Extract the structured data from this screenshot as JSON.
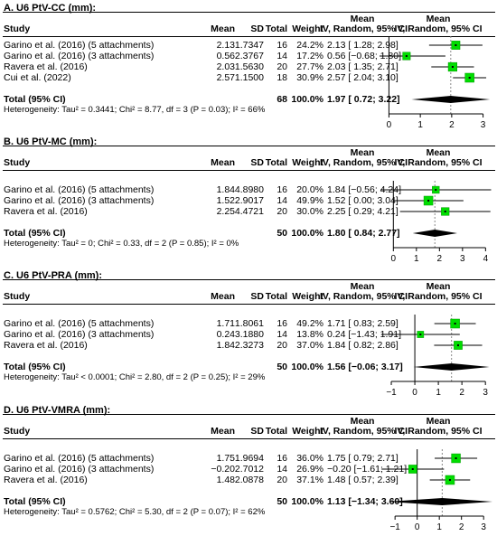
{
  "headers": {
    "study": "Study",
    "mean": "Mean",
    "sd": "SD",
    "total": "Total",
    "weight": "Weight",
    "ci_top": "Mean",
    "ci_bottom": "IV, Random, 95% CI"
  },
  "panels": [
    {
      "title": "A. U6 PtV-CC (mm):",
      "studies": [
        {
          "study": "Garino et al. (2016) (5 attachments)",
          "mean": "2.13",
          "sd": "1.7347",
          "total": "16",
          "weight": "24.2%",
          "ci": "2.13 [ 1.28; 2.98]",
          "est": 2.13,
          "lo": 1.28,
          "hi": 2.98,
          "w": 24.2
        },
        {
          "study": "Garino et al. (2016) (3 attachments)",
          "mean": "0.56",
          "sd": "2.3767",
          "total": "14",
          "weight": "17.2%",
          "ci": "0.56 [−0.68; 1.80]",
          "est": 0.56,
          "lo": -0.68,
          "hi": 1.8,
          "w": 17.2
        },
        {
          "study": "Ravera et al. (2016)",
          "mean": "2.03",
          "sd": "1.5630",
          "total": "20",
          "weight": "27.7%",
          "ci": "2.03 [ 1.35; 2.71]",
          "est": 2.03,
          "lo": 1.35,
          "hi": 2.71,
          "w": 27.7
        },
        {
          "study": "Cui et al. (2022)",
          "mean": "2.57",
          "sd": "1.1500",
          "total": "18",
          "weight": "30.9%",
          "ci": "2.57 [ 2.04; 3.10]",
          "est": 2.57,
          "lo": 2.04,
          "hi": 3.1,
          "w": 30.9
        }
      ],
      "total": {
        "label": "Total (95% CI)",
        "n": "68",
        "weight": "100.0%",
        "ci": "1.97 [ 0.72; 3.22]",
        "est": 1.97,
        "lo": 0.72,
        "hi": 3.22
      },
      "heterogeneity": "Heterogeneity: Tau² = 0.3441; Chi² = 8.77, df = 3 (P = 0.03); I² = 66%",
      "axis": {
        "min": 0,
        "max": 3,
        "ticks": [
          "0",
          "1",
          "2",
          "3"
        ],
        "xmin": -0.3,
        "xmax": 3.3
      }
    },
    {
      "title": "B. U6 PtV-MC (mm):",
      "studies": [
        {
          "study": "Garino et al. (2016) (5 attachments)",
          "mean": "1.84",
          "sd": "4.8980",
          "total": "16",
          "weight": "20.0%",
          "ci": "1.84 [−0.56; 4.24]",
          "est": 1.84,
          "lo": -0.56,
          "hi": 4.24,
          "w": 20.0
        },
        {
          "study": "Garino et al. (2016) (3 attachments)",
          "mean": "1.52",
          "sd": "2.9017",
          "total": "14",
          "weight": "49.9%",
          "ci": "1.52 [ 0.00; 3.04]",
          "est": 1.52,
          "lo": 0.0,
          "hi": 3.04,
          "w": 49.9
        },
        {
          "study": "Ravera et al. (2016)",
          "mean": "2.25",
          "sd": "4.4721",
          "total": "20",
          "weight": "30.0%",
          "ci": "2.25 [ 0.29; 4.21]",
          "est": 2.25,
          "lo": 0.29,
          "hi": 4.21,
          "w": 30.0
        }
      ],
      "total": {
        "label": "Total (95% CI)",
        "n": "50",
        "weight": "100.0%",
        "ci": "1.80 [ 0.84; 2.77]",
        "est": 1.8,
        "lo": 0.84,
        "hi": 2.77
      },
      "heterogeneity": "Heterogeneity: Tau² = 0; Chi² = 0.33, df = 2 (P = 0.85); I² = 0%",
      "axis": {
        "min": 0,
        "max": 4,
        "ticks": [
          "0",
          "1",
          "2",
          "3",
          "4"
        ],
        "xmin": -0.6,
        "xmax": 4.3
      }
    },
    {
      "title": "C. U6 PtV-PRA (mm):",
      "studies": [
        {
          "study": "Garino et al. (2016) (5 attachments)",
          "mean": "1.71",
          "sd": "1.8061",
          "total": "16",
          "weight": "49.2%",
          "ci": "1.71 [ 0.83; 2.59]",
          "est": 1.71,
          "lo": 0.83,
          "hi": 2.59,
          "w": 49.2
        },
        {
          "study": "Garino et al. (2016) (3 attachments)",
          "mean": "0.24",
          "sd": "3.1880",
          "total": "14",
          "weight": "13.8%",
          "ci": "0.24 [−1.43; 1.91]",
          "est": 0.24,
          "lo": -1.43,
          "hi": 1.91,
          "w": 13.8
        },
        {
          "study": "Ravera et al. (2016)",
          "mean": "1.84",
          "sd": "2.3273",
          "total": "20",
          "weight": "37.0%",
          "ci": "1.84 [ 0.82; 2.86]",
          "est": 1.84,
          "lo": 0.82,
          "hi": 2.86,
          "w": 37.0
        }
      ],
      "total": {
        "label": "Total (95% CI)",
        "n": "50",
        "weight": "100.0%",
        "ci": "1.56 [−0.06; 3.17]",
        "est": 1.56,
        "lo": -0.06,
        "hi": 3.17
      },
      "heterogeneity": "Heterogeneity: Tau² < 0.0001; Chi² = 2.80, df = 2 (P = 0.25); I² = 29%",
      "axis": {
        "min": -1,
        "max": 3,
        "ticks": [
          "−1",
          "0",
          "1",
          "2",
          "3"
        ],
        "xmin": -1.5,
        "xmax": 3.3
      }
    },
    {
      "title": "D. U6 PtV-VMRA (mm):",
      "studies": [
        {
          "study": "Garino et al. (2016) (5 attachments)",
          "mean": "1.75",
          "sd": "1.9694",
          "total": "16",
          "weight": "36.0%",
          "ci": "1.75 [ 0.79; 2.71]",
          "est": 1.75,
          "lo": 0.79,
          "hi": 2.71,
          "w": 36.0
        },
        {
          "study": "Garino et al. (2016) (3 attachments)",
          "mean": "−0.20",
          "sd": "2.7012",
          "total": "14",
          "weight": "26.9%",
          "ci": "−0.20 [−1.61; 1.21]",
          "est": -0.2,
          "lo": -1.61,
          "hi": 1.21,
          "w": 26.9
        },
        {
          "study": "Ravera et al. (2016)",
          "mean": "1.48",
          "sd": "2.0878",
          "total": "20",
          "weight": "37.1%",
          "ci": "1.48 [ 0.57; 2.39]",
          "est": 1.48,
          "lo": 0.57,
          "hi": 2.39,
          "w": 37.1
        }
      ],
      "total": {
        "label": "Total (95% CI)",
        "n": "50",
        "weight": "100.0%",
        "ci": "1.13 [−1.34; 3.60]",
        "est": 1.13,
        "lo": -1.34,
        "hi": 3.6
      },
      "heterogeneity": "Heterogeneity: Tau² = 0.5762; Chi² = 5.30, df = 2 (P = 0.07); I² = 62%",
      "axis": {
        "min": -1,
        "max": 3,
        "ticks": [
          "−1",
          "0",
          "1",
          "2",
          "3"
        ],
        "xmin": -1.7,
        "xmax": 3.4
      }
    }
  ],
  "chart_data": [
    {
      "type": "forest",
      "title": "A. U6 PtV-CC (mm):",
      "categories": [
        "Garino et al. (2016) (5 attachments)",
        "Garino et al. (2016) (3 attachments)",
        "Ravera et al. (2016)",
        "Cui et al. (2022)"
      ],
      "values": [
        2.13,
        0.56,
        2.03,
        2.57
      ],
      "lower": [
        1.28,
        -0.68,
        1.35,
        2.04
      ],
      "upper": [
        2.98,
        1.8,
        2.71,
        3.1
      ],
      "weights": [
        24.2,
        17.2,
        27.7,
        30.9
      ],
      "pooled": {
        "value": 1.97,
        "lower": 0.72,
        "upper": 3.22
      },
      "xlim": [
        0,
        3
      ]
    },
    {
      "type": "forest",
      "title": "B. U6 PtV-MC (mm):",
      "categories": [
        "Garino et al. (2016) (5 attachments)",
        "Garino et al. (2016) (3 attachments)",
        "Ravera et al. (2016)"
      ],
      "values": [
        1.84,
        1.52,
        2.25
      ],
      "lower": [
        -0.56,
        0.0,
        0.29
      ],
      "upper": [
        4.24,
        3.04,
        4.21
      ],
      "weights": [
        20.0,
        49.9,
        30.0
      ],
      "pooled": {
        "value": 1.8,
        "lower": 0.84,
        "upper": 2.77
      },
      "xlim": [
        0,
        4
      ]
    },
    {
      "type": "forest",
      "title": "C. U6 PtV-PRA (mm):",
      "categories": [
        "Garino et al. (2016) (5 attachments)",
        "Garino et al. (2016) (3 attachments)",
        "Ravera et al. (2016)"
      ],
      "values": [
        1.71,
        0.24,
        1.84
      ],
      "lower": [
        0.83,
        -1.43,
        0.82
      ],
      "upper": [
        2.59,
        1.91,
        2.86
      ],
      "weights": [
        49.2,
        13.8,
        37.0
      ],
      "pooled": {
        "value": 1.56,
        "lower": -0.06,
        "upper": 3.17
      },
      "xlim": [
        -1,
        3
      ]
    },
    {
      "type": "forest",
      "title": "D. U6 PtV-VMRA (mm):",
      "categories": [
        "Garino et al. (2016) (5 attachments)",
        "Garino et al. (2016) (3 attachments)",
        "Ravera et al. (2016)"
      ],
      "values": [
        1.75,
        -0.2,
        1.48
      ],
      "lower": [
        0.79,
        -1.61,
        0.57
      ],
      "upper": [
        2.71,
        1.21,
        2.39
      ],
      "weights": [
        36.0,
        26.9,
        37.1
      ],
      "pooled": {
        "value": 1.13,
        "lower": -1.34,
        "upper": 3.6
      },
      "xlim": [
        -1,
        3
      ]
    }
  ],
  "colors": {
    "square": "#00dd00",
    "square_border": "#009900",
    "line": "#000000",
    "reference": "#888888"
  }
}
